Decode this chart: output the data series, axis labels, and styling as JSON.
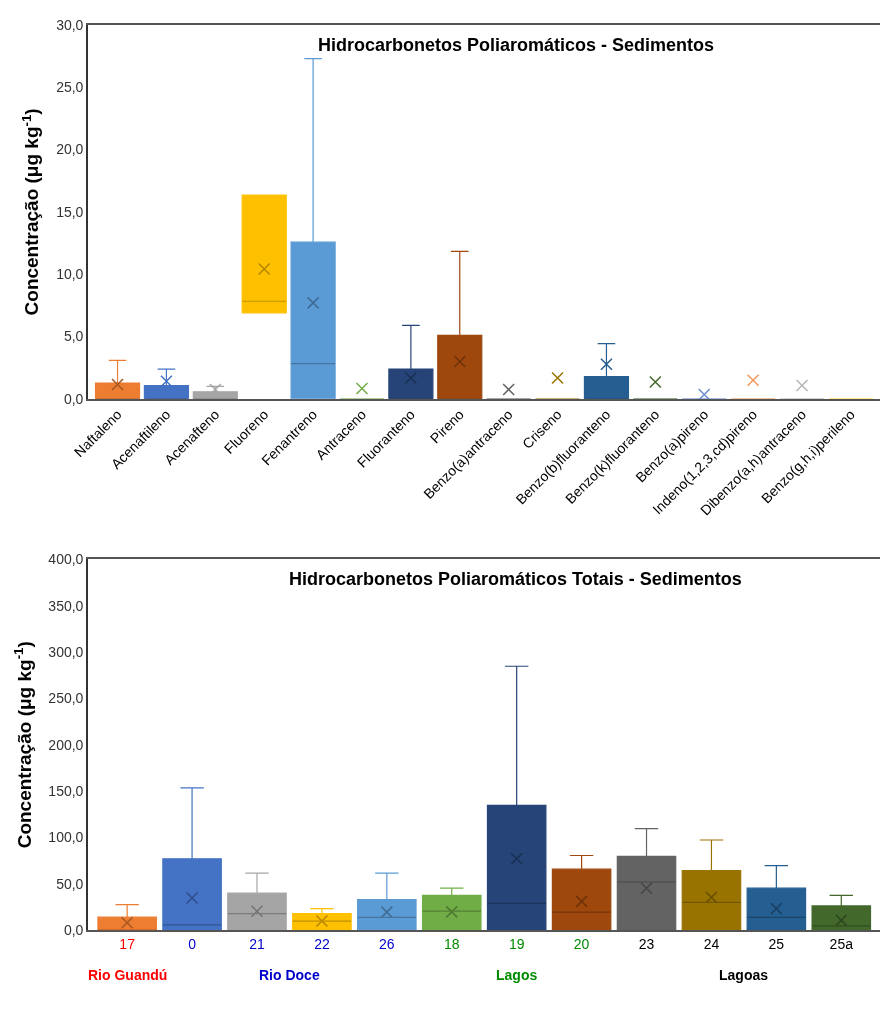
{
  "chart_data": [
    {
      "type": "box",
      "title": "Hidrocarbonetos Poliaromáticos - Sedimentos",
      "ylabel": "Concentração (μg kg$^{-1}$)",
      "categories": [
        "Naftaleno",
        "Acenaftileno",
        "Acenafteno",
        "Fluoreno",
        "Fenantreno",
        "Antraceno",
        "Fluoranteno",
        "Pireno",
        "Benzo(a)antraceno",
        "Criseno",
        "Benzo(b)fluoranteno",
        "Benzo(k)fluoranteno",
        "Benzo(a)pireno",
        "Indeno(1,2,3,cd)pireno",
        "Dibenzo(a,h)antraceno",
        "Benzo(g,h,i)perileno"
      ],
      "colors": [
        "#ed7d31",
        "#4472c4",
        "#a5a5a5",
        "#ffc000",
        "#5b9bd5",
        "#70ad47",
        "#264478",
        "#9e480e",
        "#636363",
        "#997300",
        "#255e91",
        "#43682b",
        "#698ed0",
        "#f1975a",
        "#b7b7b7",
        "#ffcd33"
      ],
      "boxes": [
        {
          "low": 0,
          "q1": 0,
          "median": 0,
          "q3": 1.27,
          "high": 3.08,
          "mean": 1.15
        },
        {
          "low": 0,
          "q1": 0,
          "median": 0,
          "q3": 1.06,
          "high": 2.39,
          "mean": 1.41
        },
        {
          "low": 0,
          "q1": 0,
          "median": 0,
          "q3": 0.56,
          "high": 1.0,
          "mean": 0.75
        },
        {
          "low": 6.9,
          "q1": 6.9,
          "median": 7.83,
          "q3": 16.34,
          "high": 16.34,
          "mean": 10.42
        },
        {
          "low": 0,
          "q1": 0,
          "median": 2.82,
          "q3": 12.57,
          "high": 27.3,
          "mean": 7.7
        },
        {
          "low": 0,
          "q1": 0,
          "median": 0,
          "q3": 0,
          "high": 0,
          "mean": 0.83
        },
        {
          "low": 0,
          "q1": 0,
          "median": 0,
          "q3": 2.39,
          "high": 5.89,
          "mean": 1.67
        },
        {
          "low": 0,
          "q1": 0,
          "median": 0,
          "q3": 5.09,
          "high": 11.83,
          "mean": 3.0
        },
        {
          "low": 0,
          "q1": 0,
          "median": 0,
          "q3": 0,
          "high": 0,
          "mean": 0.75
        },
        {
          "low": 0,
          "q1": 0,
          "median": 0,
          "q3": 0,
          "high": 0,
          "mean": 1.67
        },
        {
          "low": 0,
          "q1": 0,
          "median": 0,
          "q3": 1.78,
          "high": 4.43,
          "mean": 2.78
        },
        {
          "low": 0,
          "q1": 0,
          "median": 0,
          "q3": 0,
          "high": 0,
          "mean": 1.35
        },
        {
          "low": 0,
          "q1": 0,
          "median": 0,
          "q3": 0,
          "high": 0,
          "mean": 0.35
        },
        {
          "low": 0,
          "q1": 0,
          "median": 0,
          "q3": 0,
          "high": 0,
          "mean": 1.49
        },
        {
          "low": 0,
          "q1": 0,
          "median": 0,
          "q3": 0,
          "high": 0,
          "mean": 1.07
        },
        {
          "low": 0,
          "q1": 0,
          "median": 0,
          "q3": 0,
          "high": 0
        }
      ],
      "ylim": [
        0,
        30
      ],
      "yticks": [
        {
          "value": 0,
          "label": "0,0"
        },
        {
          "value": 5,
          "label": "5,0"
        },
        {
          "value": 10,
          "label": "10,0"
        },
        {
          "value": 15,
          "label": "15,0"
        },
        {
          "value": 20,
          "label": "20,0"
        },
        {
          "value": 25,
          "label": "25,0"
        },
        {
          "value": 30,
          "label": "30,0"
        }
      ],
      "marker": "cross"
    },
    {
      "type": "box",
      "title": "Hidrocarbonetos Poliaromáticos Totais - Sedimentos",
      "ylabel": "Concentração (μg kg$^{-1}$)",
      "categories": [
        "17",
        "0",
        "21",
        "22",
        "26",
        "18",
        "19",
        "20",
        "23",
        "24",
        "25",
        "25a"
      ],
      "colors": [
        "#ed7d31",
        "#4472c4",
        "#a5a5a5",
        "#ffc000",
        "#5b9bd5",
        "#70ad47",
        "#264478",
        "#9e480e",
        "#636363",
        "#997300",
        "#255e91",
        "#43682b"
      ],
      "boxes": [
        {
          "low": 0,
          "q1": 0,
          "median": 0,
          "q3": 14.1,
          "high": 27.6,
          "mean": 8.1
        },
        {
          "low": 0,
          "q1": 0,
          "median": 5.7,
          "q3": 77.1,
          "high": 153.5,
          "mean": 34.7
        },
        {
          "low": 0,
          "q1": 0,
          "median": 18,
          "q3": 40,
          "high": 61.5,
          "mean": 20.5
        },
        {
          "low": 0,
          "q1": 0,
          "median": 9.9,
          "q3": 18,
          "high": 23.3,
          "mean": 9.9
        },
        {
          "low": 0,
          "q1": 0,
          "median": 13.8,
          "q3": 32.9,
          "high": 61.5,
          "mean": 19.5
        },
        {
          "low": 0,
          "q1": 0,
          "median": 20.5,
          "q3": 37.5,
          "high": 45.3,
          "mean": 19.8
        },
        {
          "low": 0,
          "q1": 0,
          "median": 29,
          "q3": 134.7,
          "high": 284.7,
          "mean": 77.1
        },
        {
          "low": 0,
          "q1": 0,
          "median": 19.5,
          "q3": 65.8,
          "high": 80.6,
          "mean": 31.1
        },
        {
          "low": 0,
          "q1": 0,
          "median": 52,
          "q3": 79.6,
          "high": 109.6,
          "mean": 45.3
        },
        {
          "low": 0,
          "q1": 0,
          "median": 30.1,
          "q3": 64.4,
          "high": 97.3,
          "mean": 35.4
        },
        {
          "low": 0,
          "q1": 0,
          "median": 13.8,
          "q3": 45.3,
          "high": 69.7,
          "mean": 23.3
        },
        {
          "low": 0,
          "q1": 0,
          "median": 4.6,
          "q3": 26.2,
          "high": 37.5,
          "mean": 10.6
        }
      ],
      "ylim": [
        0,
        400
      ],
      "yticks": [
        {
          "value": 0,
          "label": "0,0"
        },
        {
          "value": 50,
          "label": "50,0"
        },
        {
          "value": 100,
          "label": "100,0"
        },
        {
          "value": 150,
          "label": "150,0"
        },
        {
          "value": 200,
          "label": "200,0"
        },
        {
          "value": 250,
          "label": "250,0"
        },
        {
          "value": 300,
          "label": "300,0"
        },
        {
          "value": 350,
          "label": "350,0"
        },
        {
          "value": 400,
          "label": "400,0"
        }
      ],
      "annotations": [
        "Rio Guandú",
        "Rio Doce",
        "Lagos",
        "Lagoas"
      ],
      "marker": "cross"
    }
  ]
}
